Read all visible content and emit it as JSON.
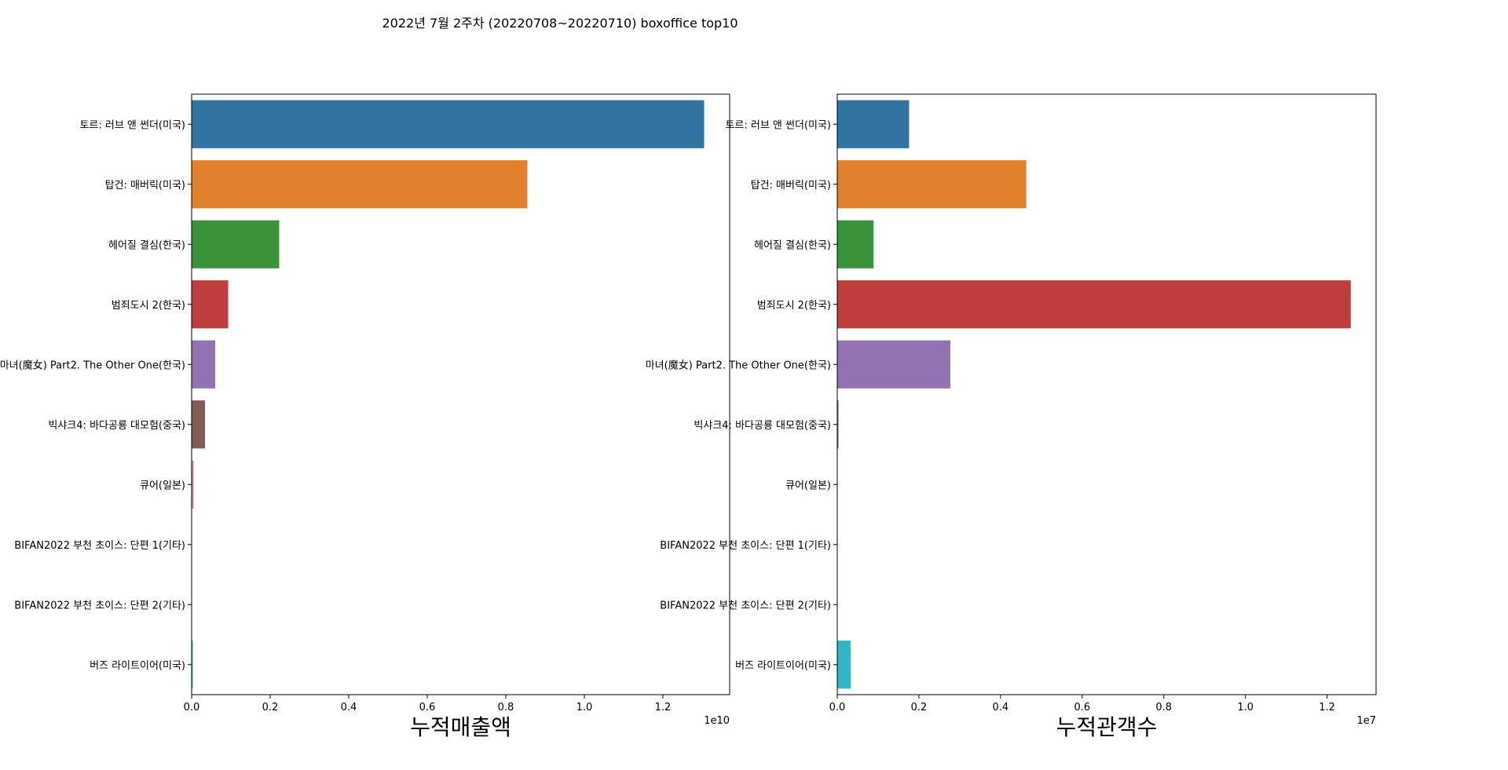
{
  "title": "2022년 7월 2주차 (20220708~20220710) boxoffice top10",
  "colors": [
    "#3274a1",
    "#e1812c",
    "#3a923a",
    "#c03d3e",
    "#9372b2",
    "#845b53",
    "#d684bd",
    "#7f7f7f",
    "#a9aa35",
    "#2eb7c6"
  ],
  "chart_data": [
    {
      "type": "bar",
      "orientation": "horizontal",
      "categories": [
        "토르: 러브 앤 썬더(미국)",
        "탑건: 매버릭(미국)",
        "헤어질 결심(한국)",
        "범죄도시 2(한국)",
        "마녀(魔女) Part2. The Other One(한국)",
        "빅샤크4: 바다공룡 대모험(중국)",
        "큐어(일본)",
        "BIFAN2022 부천 초이스: 단편 1(기타)",
        "BIFAN2022 부천 초이스: 단편 2(기타)",
        "버즈 라이트이어(미국)"
      ],
      "values": [
        13050000000,
        8550000000,
        2230000000,
        930000000,
        600000000,
        340000000,
        50000000,
        2000000,
        2000000,
        30000000
      ],
      "xlabel": "누적매출액",
      "offset_text": "1e10",
      "scale": 10000000000,
      "xlim": [
        0,
        13700000000
      ],
      "xticks": [
        0,
        2000000000,
        4000000000,
        6000000000,
        8000000000,
        10000000000,
        12000000000
      ],
      "xtick_labels": [
        "0.0",
        "0.2",
        "0.4",
        "0.6",
        "0.8",
        "1.0",
        "1.2"
      ]
    },
    {
      "type": "bar",
      "orientation": "horizontal",
      "categories": [
        "토르: 러브 앤 썬더(미국)",
        "탑건: 매버릭(미국)",
        "헤어질 결심(한국)",
        "범죄도시 2(한국)",
        "마녀(魔女) Part2. The Other One(한국)",
        "빅샤크4: 바다공룡 대모험(중국)",
        "큐어(일본)",
        "BIFAN2022 부천 초이스: 단편 1(기타)",
        "BIFAN2022 부천 초이스: 단편 2(기타)",
        "버즈 라이트이어(미국)"
      ],
      "values": [
        1760000,
        4630000,
        890000,
        12580000,
        2770000,
        30000,
        4000,
        300,
        300,
        330000
      ],
      "xlabel": "누적관객수",
      "offset_text": "1e7",
      "scale": 10000000,
      "xlim": [
        0,
        13200000
      ],
      "xticks": [
        0,
        2000000,
        4000000,
        6000000,
        8000000,
        10000000,
        12000000
      ],
      "xtick_labels": [
        "0.0",
        "0.2",
        "0.4",
        "0.6",
        "0.8",
        "1.0",
        "1.2"
      ]
    }
  ]
}
